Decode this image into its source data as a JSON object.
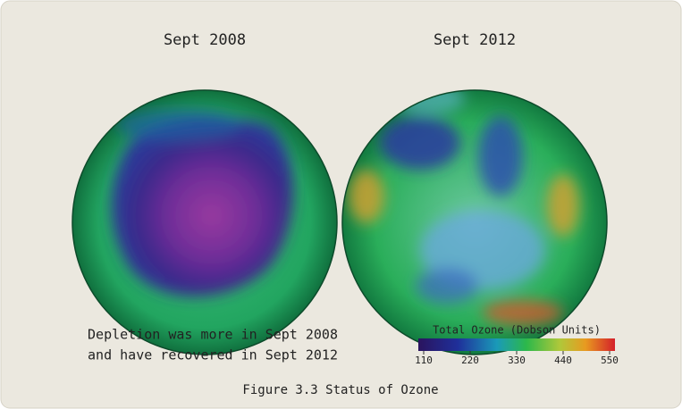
{
  "panels": [
    {
      "title": "Sept 2008"
    },
    {
      "title": "Sept 2012"
    }
  ],
  "note": [
    "Depletion was more in Sept 2008",
    "and have recovered in Sept 2012"
  ],
  "colorbar": {
    "title": "Total Ozone (Dobson Units)",
    "lim": [
      110,
      550
    ],
    "ticks": [
      110,
      220,
      330,
      440,
      550
    ]
  },
  "caption": "Figure 3.3 Status of Ozone"
}
